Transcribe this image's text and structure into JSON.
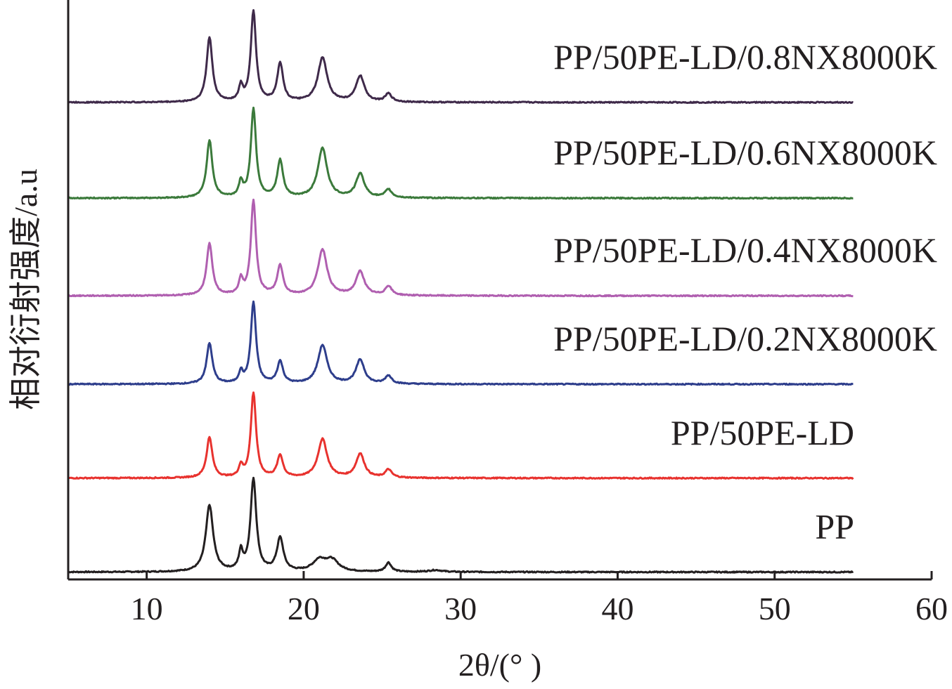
{
  "chart_data": {
    "type": "line",
    "title": "",
    "xlabel": "2θ/(° )",
    "ylabel": "相对衍射强度/a.u",
    "xlim": [
      5,
      60
    ],
    "ylim": [
      0,
      15.5
    ],
    "xticks": [
      10,
      20,
      30,
      40,
      50,
      60
    ],
    "x_start": 5,
    "x_end": 55,
    "grid": false,
    "legend": "labels placed on each curve (right side)",
    "series": [
      {
        "name": "PP",
        "color": "#231f20",
        "offset": 0,
        "baseline": 0.2,
        "peaks": [
          [
            14.0,
            1.8,
            0.28
          ],
          [
            16.0,
            0.5,
            0.15
          ],
          [
            16.8,
            2.5,
            0.22
          ],
          [
            18.5,
            0.9,
            0.25
          ],
          [
            21.0,
            0.3,
            0.5
          ],
          [
            21.8,
            0.3,
            0.5
          ],
          [
            25.4,
            0.25,
            0.22
          ],
          [
            28.4,
            0.05,
            0.5
          ]
        ]
      },
      {
        "name": "PP/50PE-LD",
        "color": "#e8322e",
        "offset": 2.55,
        "baseline": 0.2,
        "peaks": [
          [
            14.0,
            1.1,
            0.22
          ],
          [
            16.0,
            0.3,
            0.15
          ],
          [
            16.8,
            2.3,
            0.2
          ],
          [
            18.5,
            0.6,
            0.22
          ],
          [
            21.2,
            1.05,
            0.35
          ],
          [
            23.6,
            0.65,
            0.32
          ],
          [
            25.4,
            0.22,
            0.25
          ]
        ]
      },
      {
        "name": "PP/50PE-LD/0.2NX8000K",
        "color": "#2e3e8c",
        "offset": 5.1,
        "baseline": 0.2,
        "peaks": [
          [
            14.0,
            1.1,
            0.22
          ],
          [
            16.0,
            0.3,
            0.15
          ],
          [
            16.8,
            2.2,
            0.2
          ],
          [
            18.5,
            0.6,
            0.22
          ],
          [
            21.2,
            1.05,
            0.35
          ],
          [
            23.6,
            0.65,
            0.32
          ],
          [
            25.4,
            0.22,
            0.25
          ]
        ]
      },
      {
        "name": "PP/50PE-LD/0.4NX8000K",
        "color": "#b05fb0",
        "offset": 7.5,
        "baseline": 0.2,
        "peaks": [
          [
            14.0,
            1.4,
            0.22
          ],
          [
            16.0,
            0.4,
            0.15
          ],
          [
            16.8,
            2.55,
            0.2
          ],
          [
            18.5,
            0.8,
            0.22
          ],
          [
            21.2,
            1.25,
            0.35
          ],
          [
            23.6,
            0.65,
            0.32
          ],
          [
            25.4,
            0.25,
            0.25
          ]
        ]
      },
      {
        "name": "PP/50PE-LD/0.6NX8000K",
        "color": "#3b7a3b",
        "offset": 10.15,
        "baseline": 0.2,
        "peaks": [
          [
            14.0,
            1.55,
            0.22
          ],
          [
            16.0,
            0.4,
            0.15
          ],
          [
            16.8,
            2.4,
            0.2
          ],
          [
            18.5,
            1.0,
            0.22
          ],
          [
            21.2,
            1.35,
            0.35
          ],
          [
            23.6,
            0.65,
            0.32
          ],
          [
            25.4,
            0.22,
            0.25
          ]
        ]
      },
      {
        "name": "PP/50PE-LD/0.8NX8000K",
        "color": "#3f2a4a",
        "offset": 12.75,
        "baseline": 0.2,
        "peaks": [
          [
            14.0,
            1.75,
            0.22
          ],
          [
            16.0,
            0.4,
            0.15
          ],
          [
            16.8,
            2.45,
            0.2
          ],
          [
            18.5,
            1.05,
            0.22
          ],
          [
            21.2,
            1.2,
            0.35
          ],
          [
            23.6,
            0.7,
            0.32
          ],
          [
            25.4,
            0.22,
            0.25
          ]
        ]
      }
    ]
  }
}
